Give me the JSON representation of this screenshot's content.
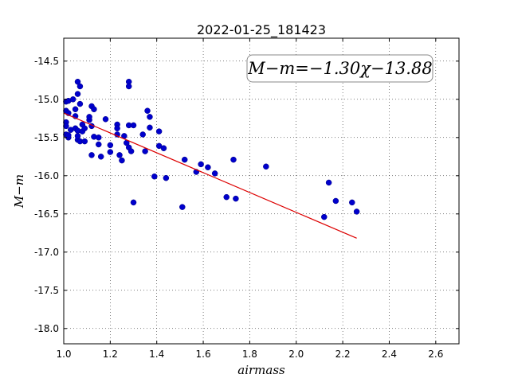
{
  "chart_data": {
    "type": "scatter",
    "title": "2022-01-25_181423",
    "xlabel": "airmass",
    "ylabel": "M−m",
    "xlim": [
      1.0,
      2.7
    ],
    "ylim": [
      -18.2,
      -14.2
    ],
    "y_inverted": false,
    "grid": true,
    "grid_style": "dotted",
    "xticks": [
      "1.0",
      "1.2",
      "1.4",
      "1.6",
      "1.8",
      "2.0",
      "2.2",
      "2.4",
      "2.6"
    ],
    "yticks": [
      "-14.5",
      "-15.0",
      "-15.5",
      "-16.0",
      "-16.5",
      "-17.0",
      "-17.5",
      "-18.0"
    ],
    "annotation": "M−m=−1.30χ−13.88",
    "point_color": "#0000cc",
    "line_color": "#dd0000",
    "fit": {
      "slope": -1.3,
      "intercept": -13.88,
      "x_range": [
        1.0,
        2.26
      ]
    },
    "points": [
      [
        1.01,
        -15.03
      ],
      [
        1.02,
        -15.02
      ],
      [
        1.01,
        -15.15
      ],
      [
        1.02,
        -15.18
      ],
      [
        1.01,
        -15.3
      ],
      [
        1.01,
        -15.35
      ],
      [
        1.01,
        -15.46
      ],
      [
        1.02,
        -15.5
      ],
      [
        1.02,
        -15.47
      ],
      [
        1.03,
        -15.4
      ],
      [
        1.04,
        -15.0
      ],
      [
        1.05,
        -15.13
      ],
      [
        1.05,
        -15.22
      ],
      [
        1.05,
        -15.38
      ],
      [
        1.06,
        -15.41
      ],
      [
        1.06,
        -15.53
      ],
      [
        1.06,
        -15.48
      ],
      [
        1.07,
        -15.55
      ],
      [
        1.06,
        -14.77
      ],
      [
        1.07,
        -14.83
      ],
      [
        1.06,
        -14.93
      ],
      [
        1.07,
        -15.06
      ],
      [
        1.08,
        -15.33
      ],
      [
        1.08,
        -15.42
      ],
      [
        1.09,
        -15.38
      ],
      [
        1.09,
        -15.55
      ],
      [
        1.11,
        -15.27
      ],
      [
        1.11,
        -15.23
      ],
      [
        1.12,
        -15.35
      ],
      [
        1.12,
        -15.09
      ],
      [
        1.13,
        -15.13
      ],
      [
        1.13,
        -15.49
      ],
      [
        1.12,
        -15.73
      ],
      [
        1.15,
        -15.5
      ],
      [
        1.15,
        -15.59
      ],
      [
        1.16,
        -15.75
      ],
      [
        1.18,
        -15.26
      ],
      [
        1.2,
        -15.6
      ],
      [
        1.2,
        -15.69
      ],
      [
        1.23,
        -15.33
      ],
      [
        1.23,
        -15.38
      ],
      [
        1.23,
        -15.46
      ],
      [
        1.24,
        -15.73
      ],
      [
        1.25,
        -15.8
      ],
      [
        1.26,
        -15.48
      ],
      [
        1.27,
        -15.57
      ],
      [
        1.28,
        -15.34
      ],
      [
        1.28,
        -15.63
      ],
      [
        1.29,
        -15.68
      ],
      [
        1.3,
        -15.34
      ],
      [
        1.28,
        -14.77
      ],
      [
        1.28,
        -14.83
      ],
      [
        1.3,
        -16.35
      ],
      [
        1.34,
        -15.46
      ],
      [
        1.35,
        -15.68
      ],
      [
        1.36,
        -15.15
      ],
      [
        1.37,
        -15.23
      ],
      [
        1.37,
        -15.37
      ],
      [
        1.39,
        -16.01
      ],
      [
        1.41,
        -15.42
      ],
      [
        1.41,
        -15.61
      ],
      [
        1.43,
        -15.64
      ],
      [
        1.44,
        -16.03
      ],
      [
        1.51,
        -16.41
      ],
      [
        1.52,
        -15.79
      ],
      [
        1.57,
        -15.95
      ],
      [
        1.59,
        -15.85
      ],
      [
        1.62,
        -15.89
      ],
      [
        1.65,
        -15.97
      ],
      [
        1.7,
        -16.28
      ],
      [
        1.73,
        -15.79
      ],
      [
        1.74,
        -16.3
      ],
      [
        1.87,
        -15.88
      ],
      [
        2.12,
        -16.54
      ],
      [
        2.14,
        -16.09
      ],
      [
        2.17,
        -16.33
      ],
      [
        2.24,
        -16.35
      ],
      [
        2.26,
        -16.47
      ]
    ]
  }
}
